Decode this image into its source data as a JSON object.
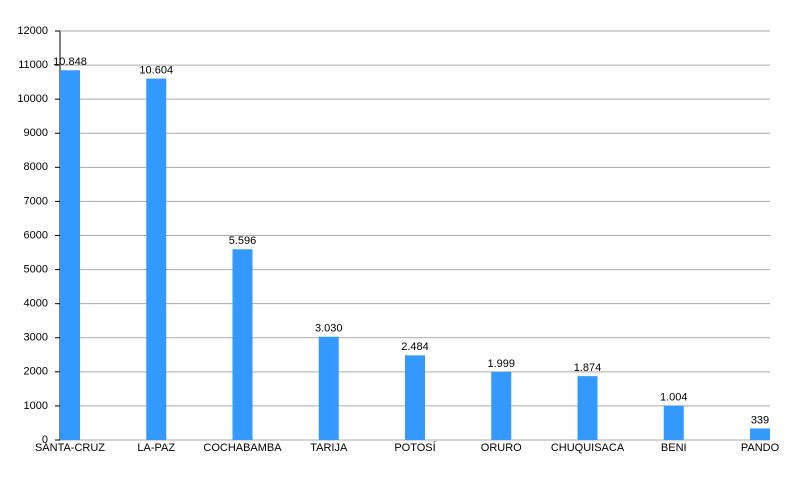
{
  "chart_data": {
    "type": "bar",
    "categories": [
      "SANTA-CRUZ",
      "LA-PAZ",
      "COCHABAMBA",
      "TARIJA",
      "POTOSÍ",
      "ORURO",
      "CHUQUISACA",
      "BENI",
      "PANDO"
    ],
    "values": [
      10848,
      10604,
      5596,
      3030,
      2484,
      1999,
      1874,
      1004,
      339
    ],
    "value_labels": [
      "10.848",
      "10.604",
      "5.596",
      "3.030",
      "2.484",
      "1.999",
      "1.874",
      "1.004",
      "339"
    ],
    "color": "#3399ff",
    "ylim": [
      0,
      12000
    ],
    "yticks": [
      0,
      1000,
      2000,
      3000,
      4000,
      5000,
      6000,
      7000,
      8000,
      9000,
      10000,
      11000,
      12000
    ],
    "grid": true
  }
}
